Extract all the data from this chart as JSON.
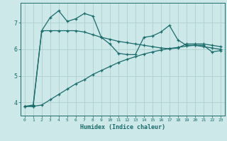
{
  "xlabel": "Humidex (Indice chaleur)",
  "bg_color": "#cce8e8",
  "grid_color": "#aacccc",
  "line_color": "#1a6b6b",
  "xlim": [
    -0.5,
    23.5
  ],
  "ylim": [
    3.5,
    7.75
  ],
  "yticks": [
    4,
    5,
    6,
    7
  ],
  "xticks": [
    0,
    1,
    2,
    3,
    4,
    5,
    6,
    7,
    8,
    9,
    10,
    11,
    12,
    13,
    14,
    15,
    16,
    17,
    18,
    19,
    20,
    21,
    22,
    23
  ],
  "line1_x": [
    0,
    1,
    2,
    3,
    4,
    5,
    6,
    7,
    8,
    9,
    10,
    11,
    12,
    13,
    14,
    15,
    16,
    17,
    18,
    19,
    20,
    21,
    22,
    23
  ],
  "line1_y": [
    3.85,
    3.9,
    6.7,
    7.2,
    7.45,
    7.05,
    7.15,
    7.35,
    7.25,
    6.45,
    6.2,
    5.85,
    5.8,
    5.8,
    6.45,
    6.5,
    6.65,
    6.9,
    6.35,
    6.15,
    6.15,
    6.15,
    5.9,
    5.95
  ],
  "line2_x": [
    0,
    1,
    2,
    3,
    4,
    5,
    6,
    7,
    8,
    9,
    10,
    11,
    12,
    13,
    14,
    15,
    16,
    17,
    18,
    19,
    20,
    21,
    22,
    23
  ],
  "line2_y": [
    3.85,
    3.85,
    6.7,
    6.7,
    6.7,
    6.7,
    6.7,
    6.65,
    6.55,
    6.45,
    6.38,
    6.3,
    6.25,
    6.2,
    6.15,
    6.1,
    6.05,
    6.02,
    6.05,
    6.2,
    6.2,
    6.2,
    6.15,
    6.1
  ],
  "line3_x": [
    0,
    1,
    2,
    3,
    4,
    5,
    6,
    7,
    8,
    9,
    10,
    11,
    12,
    13,
    14,
    15,
    16,
    17,
    18,
    19,
    20,
    21,
    22,
    23
  ],
  "line3_y": [
    3.85,
    3.85,
    3.9,
    4.1,
    4.3,
    4.5,
    4.7,
    4.85,
    5.05,
    5.2,
    5.35,
    5.5,
    5.62,
    5.72,
    5.82,
    5.9,
    5.97,
    6.03,
    6.07,
    6.12,
    6.15,
    6.1,
    6.05,
    6.0
  ]
}
